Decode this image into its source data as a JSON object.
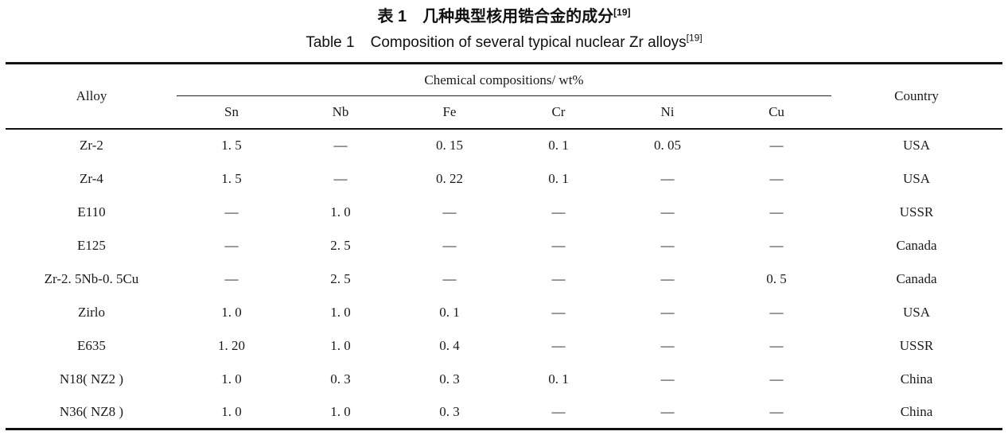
{
  "page": {
    "background": "#ffffff",
    "text_color": "#1a1a1a",
    "rule_color": "#111111"
  },
  "title_zh": {
    "label": "表 1",
    "text": "几种典型核用锆合金的成分",
    "ref": "[19]"
  },
  "title_en": {
    "label": "Table 1",
    "text": "Composition of several typical nuclear Zr alloys",
    "ref": "[19]"
  },
  "table": {
    "header": {
      "alloy": "Alloy",
      "group": "Chemical compositions/ wt%",
      "elements": [
        "Sn",
        "Nb",
        "Fe",
        "Cr",
        "Ni",
        "Cu"
      ],
      "country": "Country"
    },
    "rows": [
      {
        "alloy": "Zr-2",
        "values": [
          "1. 5",
          "—",
          "0. 15",
          "0. 1",
          "0. 05",
          "—"
        ],
        "country": "USA"
      },
      {
        "alloy": "Zr-4",
        "values": [
          "1. 5",
          "—",
          "0. 22",
          "0. 1",
          "—",
          "—"
        ],
        "country": "USA"
      },
      {
        "alloy": "E110",
        "values": [
          "—",
          "1. 0",
          "—",
          "—",
          "—",
          "—"
        ],
        "country": "USSR"
      },
      {
        "alloy": "E125",
        "values": [
          "—",
          "2. 5",
          "—",
          "—",
          "—",
          "—"
        ],
        "country": "Canada"
      },
      {
        "alloy": "Zr-2. 5Nb-0. 5Cu",
        "values": [
          "—",
          "2. 5",
          "—",
          "—",
          "—",
          "0. 5"
        ],
        "country": "Canada"
      },
      {
        "alloy": "Zirlo",
        "values": [
          "1. 0",
          "1. 0",
          "0. 1",
          "—",
          "—",
          "—"
        ],
        "country": "USA"
      },
      {
        "alloy": "E635",
        "values": [
          "1. 20",
          "1. 0",
          "0. 4",
          "—",
          "—",
          "—"
        ],
        "country": "USSR"
      },
      {
        "alloy": "N18( NZ2 )",
        "values": [
          "1. 0",
          "0. 3",
          "0. 3",
          "0. 1",
          "—",
          "—"
        ],
        "country": "China"
      },
      {
        "alloy": "N36( NZ8 )",
        "values": [
          "1. 0",
          "1. 0",
          "0. 3",
          "—",
          "—",
          "—"
        ],
        "country": "China"
      }
    ]
  }
}
